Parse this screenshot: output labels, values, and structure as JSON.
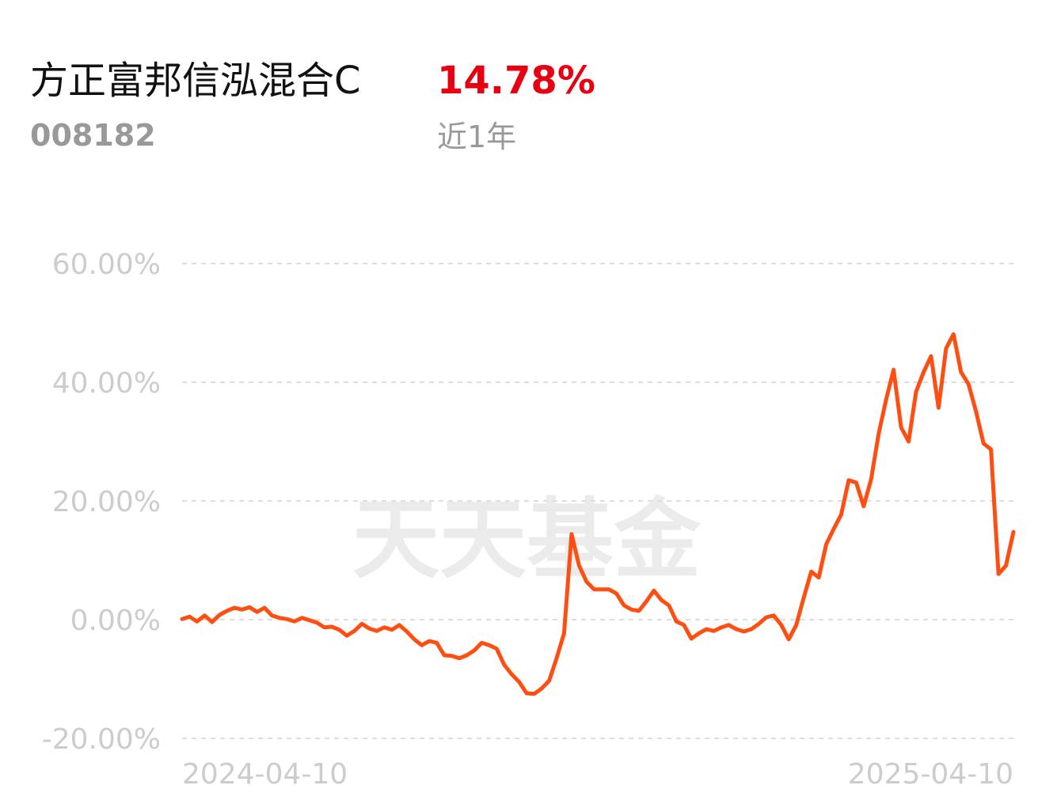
{
  "header": {
    "title": "方正富邦信泓混合C",
    "code": "008182",
    "return": "14.78%",
    "period": "近1年"
  },
  "watermark": "天天基金",
  "chart_data": {
    "type": "line",
    "categories": [
      "2024-04-10",
      null,
      null,
      null,
      null,
      null,
      null,
      null,
      null,
      null,
      null,
      null,
      null,
      null,
      null,
      null,
      null,
      null,
      null,
      null,
      null,
      null,
      null,
      null,
      null,
      null,
      null,
      null,
      null,
      null,
      null,
      null,
      null,
      null,
      null,
      null,
      null,
      null,
      null,
      null,
      null,
      null,
      null,
      null,
      null,
      null,
      null,
      null,
      null,
      null,
      null,
      null,
      null,
      null,
      null,
      null,
      null,
      null,
      null,
      null,
      null,
      null,
      null,
      null,
      null,
      null,
      null,
      null,
      null,
      null,
      null,
      null,
      null,
      null,
      null,
      null,
      null,
      null,
      null,
      null,
      null,
      null,
      null,
      null,
      null,
      null,
      null,
      null,
      null,
      null,
      null,
      null,
      null,
      null,
      null,
      null,
      null,
      null,
      null,
      null,
      null,
      null,
      null,
      null,
      null,
      null,
      null,
      null,
      null,
      null,
      null,
      "2025-04-10"
    ],
    "series": [
      {
        "name": null,
        "color": "#ff4e12",
        "values": [
          0.1,
          0.5,
          -0.3,
          0.7,
          -0.4,
          0.8,
          1.5,
          2.0,
          1.7,
          2.1,
          1.3,
          2.0,
          0.7,
          0.3,
          0.1,
          -0.3,
          0.3,
          -0.1,
          -0.5,
          -1.3,
          -1.2,
          -1.7,
          -2.7,
          -1.9,
          -0.7,
          -1.5,
          -1.9,
          -1.3,
          -1.7,
          -0.9,
          -2.0,
          -3.3,
          -4.3,
          -3.6,
          -3.9,
          -6.0,
          -6.1,
          -6.5,
          -6.0,
          -5.2,
          -3.9,
          -4.3,
          -4.9,
          -7.6,
          -9.2,
          -10.5,
          -12.4,
          -12.5,
          -11.6,
          -10.3,
          -6.5,
          -2.3,
          14.4,
          9.1,
          6.4,
          5.1,
          5.1,
          5.1,
          4.4,
          2.4,
          1.7,
          1.5,
          3.1,
          4.9,
          3.3,
          2.4,
          -0.3,
          -0.9,
          -3.2,
          -2.3,
          -1.6,
          -1.9,
          -1.3,
          -0.9,
          -1.6,
          -2.0,
          -1.6,
          -0.7,
          0.4,
          0.7,
          -0.9,
          -3.3,
          -0.9,
          3.7,
          8.1,
          7.1,
          12.7,
          15.3,
          17.7,
          23.5,
          23.1,
          19.1,
          23.7,
          31.3,
          37.1,
          42.1,
          32.4,
          30.0,
          38.4,
          41.7,
          44.4,
          35.7,
          45.7,
          48.1,
          41.7,
          39.7,
          35.1,
          29.7,
          28.7,
          7.7,
          9.1,
          14.78
        ]
      }
    ],
    "ylim": [
      -20,
      60
    ],
    "yticks": [
      {
        "value": -20,
        "label": "-20.00%"
      },
      {
        "value": 0,
        "label": "0.00%"
      },
      {
        "value": 20,
        "label": "20.00%"
      },
      {
        "value": 40,
        "label": "40.00%"
      },
      {
        "value": 60,
        "label": "60.00%"
      }
    ],
    "grid": true
  }
}
